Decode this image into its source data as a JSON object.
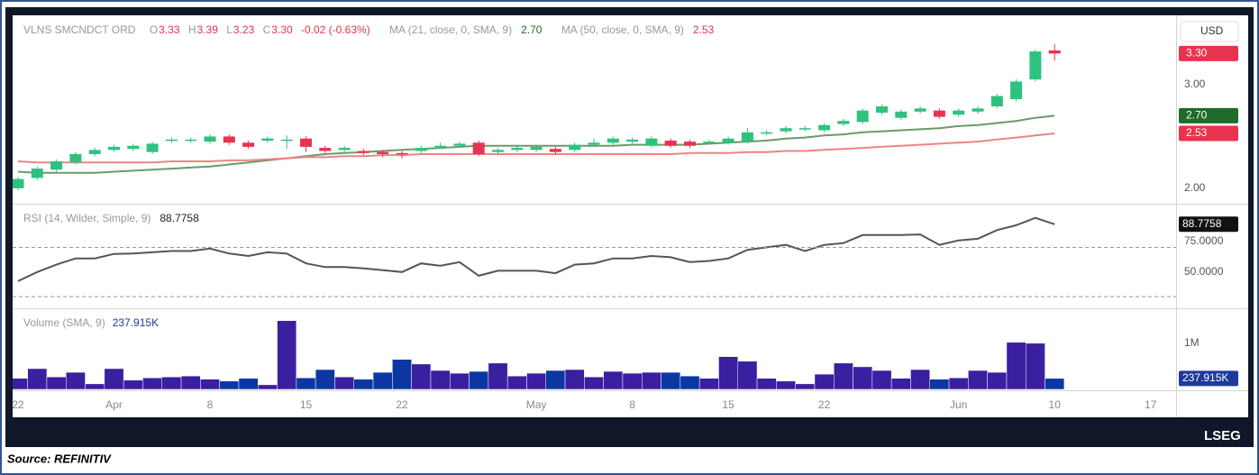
{
  "chart_data": [
    {
      "type": "candlestick",
      "title": "VLNS SMCNDCT ORD",
      "currency": "USD",
      "ohlc_letters": [
        "O",
        "H",
        "L",
        "C"
      ],
      "change_label": "-0.02 (-0.63%)",
      "up_color": "#2ec27e",
      "down_color": "#e8334f",
      "open": [
        2.0,
        2.1,
        2.18,
        2.25,
        2.33,
        2.37,
        2.38,
        2.35,
        2.46,
        2.46,
        2.45,
        2.5,
        2.44,
        2.46,
        2.47,
        2.48,
        2.39,
        2.37,
        2.36,
        2.35,
        2.34,
        2.36,
        2.4,
        2.41,
        2.44,
        2.35,
        2.37,
        2.37,
        2.38,
        2.37,
        2.42,
        2.44,
        2.45,
        2.41,
        2.46,
        2.45,
        2.44,
        2.44,
        2.45,
        2.53,
        2.55,
        2.57,
        2.56,
        2.62,
        2.64,
        2.73,
        2.68,
        2.74,
        2.75,
        2.71,
        2.74,
        2.79,
        2.86,
        3.05,
        3.33,
        null,
        null,
        null,
        null,
        null,
        null
      ],
      "high": [
        2.11,
        2.21,
        2.28,
        2.35,
        2.39,
        2.42,
        2.43,
        2.45,
        2.49,
        2.49,
        2.52,
        2.52,
        2.46,
        2.5,
        2.51,
        2.5,
        2.41,
        2.41,
        2.38,
        2.37,
        2.36,
        2.41,
        2.44,
        2.45,
        2.46,
        2.39,
        2.41,
        2.42,
        2.4,
        2.44,
        2.48,
        2.5,
        2.49,
        2.5,
        2.48,
        2.47,
        2.47,
        2.5,
        2.58,
        2.56,
        2.6,
        2.6,
        2.63,
        2.67,
        2.77,
        2.81,
        2.76,
        2.79,
        2.77,
        2.77,
        2.79,
        2.91,
        3.05,
        3.34,
        3.39,
        null,
        null,
        null,
        null,
        null,
        null
      ],
      "low": [
        1.98,
        2.08,
        2.16,
        2.23,
        2.31,
        2.35,
        2.36,
        2.33,
        2.44,
        2.44,
        2.43,
        2.42,
        2.38,
        2.44,
        2.38,
        2.35,
        2.34,
        2.35,
        2.32,
        2.3,
        2.29,
        2.34,
        2.38,
        2.39,
        2.31,
        2.33,
        2.35,
        2.35,
        2.33,
        2.35,
        2.4,
        2.42,
        2.43,
        2.39,
        2.39,
        2.39,
        2.42,
        2.42,
        2.43,
        2.51,
        2.53,
        2.55,
        2.54,
        2.6,
        2.62,
        2.71,
        2.66,
        2.72,
        2.67,
        2.69,
        2.72,
        2.77,
        2.84,
        3.03,
        3.23,
        null,
        null,
        null,
        null,
        null,
        null
      ],
      "close": [
        2.09,
        2.19,
        2.26,
        2.33,
        2.37,
        2.4,
        2.41,
        2.43,
        2.47,
        2.47,
        2.5,
        2.44,
        2.4,
        2.48,
        2.47,
        2.4,
        2.36,
        2.39,
        2.34,
        2.33,
        2.33,
        2.39,
        2.41,
        2.43,
        2.33,
        2.37,
        2.39,
        2.4,
        2.35,
        2.42,
        2.44,
        2.48,
        2.47,
        2.48,
        2.41,
        2.41,
        2.45,
        2.48,
        2.54,
        2.54,
        2.58,
        2.58,
        2.61,
        2.65,
        2.75,
        2.79,
        2.74,
        2.77,
        2.69,
        2.75,
        2.77,
        2.89,
        3.03,
        3.32,
        3.3,
        null,
        null,
        null,
        null,
        null,
        null
      ],
      "overlays": [
        {
          "name": "MA (21, close, 0, SMA, 9)",
          "color": "#6a9a6a",
          "values": [
            2.16,
            2.15,
            2.15,
            2.15,
            2.15,
            2.16,
            2.17,
            2.18,
            2.19,
            2.2,
            2.21,
            2.23,
            2.25,
            2.27,
            2.29,
            2.31,
            2.33,
            2.34,
            2.35,
            2.36,
            2.37,
            2.38,
            2.39,
            2.4,
            2.41,
            2.41,
            2.41,
            2.41,
            2.41,
            2.41,
            2.41,
            2.41,
            2.42,
            2.42,
            2.42,
            2.42,
            2.43,
            2.44,
            2.45,
            2.46,
            2.48,
            2.49,
            2.51,
            2.52,
            2.54,
            2.55,
            2.56,
            2.57,
            2.58,
            2.6,
            2.61,
            2.63,
            2.65,
            2.68,
            2.7,
            null,
            null,
            null,
            null,
            null,
            null
          ]
        },
        {
          "name": "MA (50, close, 0, SMA, 9)",
          "color": "#ec8585",
          "values": [
            2.26,
            2.25,
            2.25,
            2.25,
            2.25,
            2.25,
            2.25,
            2.25,
            2.26,
            2.26,
            2.26,
            2.27,
            2.27,
            2.28,
            2.29,
            2.3,
            2.3,
            2.31,
            2.31,
            2.32,
            2.32,
            2.33,
            2.33,
            2.33,
            2.33,
            2.33,
            2.33,
            2.33,
            2.33,
            2.33,
            2.33,
            2.33,
            2.33,
            2.33,
            2.33,
            2.34,
            2.34,
            2.34,
            2.35,
            2.35,
            2.36,
            2.36,
            2.37,
            2.38,
            2.39,
            2.4,
            2.41,
            2.42,
            2.43,
            2.44,
            2.45,
            2.47,
            2.49,
            2.51,
            2.53,
            null,
            null,
            null,
            null,
            null,
            null
          ]
        }
      ],
      "price_tags": [
        {
          "value": 3.3,
          "label": "3.30",
          "color": "#e8334f"
        },
        {
          "value": 2.7,
          "label": "2.70",
          "color": "#1f6b2a"
        },
        {
          "value": 2.53,
          "label": "2.53",
          "color": "#e8334f"
        }
      ],
      "ylim": [
        1.86,
        3.66
      ],
      "yticks": [
        {
          "value": 2,
          "label": "2.00"
        },
        {
          "value": 3,
          "label": "3.00"
        }
      ]
    },
    {
      "type": "line",
      "title": "RSI (14, Wilder, Simple, 9)",
      "color": "#555555",
      "values": [
        42.6,
        50,
        56,
        61,
        61,
        64.7,
        65,
        66,
        67,
        67,
        69,
        65,
        63,
        66,
        65,
        57,
        54,
        54,
        53,
        51.5,
        50,
        57,
        55,
        58,
        47,
        51,
        51,
        51,
        49,
        56,
        57,
        61,
        61,
        63,
        62,
        58,
        59,
        61,
        68,
        70,
        72,
        67,
        72,
        73.5,
        80,
        80,
        80,
        80.5,
        72,
        75.7,
        77,
        84,
        88,
        94,
        88.7758,
        null,
        null,
        null,
        null,
        null,
        null
      ],
      "ylim": [
        22,
        104
      ],
      "yticks": [
        {
          "value": 50,
          "label": "50.0000"
        },
        {
          "value": 75,
          "label": "75.0000"
        }
      ],
      "hlines": [
        30,
        70
      ]
    },
    {
      "type": "bar",
      "title": "Volume (SMA, 9)",
      "last_value_label": "237.915K",
      "up_color": "#3a1fa0",
      "down_color": "#0c37a3",
      "categories": [
        "22",
        null,
        null,
        null,
        null,
        "Apr",
        null,
        null,
        null,
        null,
        "8",
        null,
        null,
        null,
        null,
        "15",
        null,
        null,
        null,
        null,
        "22",
        null,
        null,
        null,
        null,
        null,
        null,
        "May",
        null,
        null,
        null,
        null,
        "8",
        null,
        null,
        null,
        null,
        "15",
        null,
        null,
        null,
        null,
        "22",
        null,
        null,
        null,
        null,
        null,
        null,
        "Jun",
        null,
        null,
        null,
        null,
        "10",
        null,
        null,
        null,
        null,
        "17",
        null
      ],
      "values": [
        240000,
        450000,
        270000,
        370000,
        120000,
        450000,
        200000,
        250000,
        270000,
        290000,
        220000,
        180000,
        240000,
        100000,
        1490000,
        250000,
        430000,
        270000,
        220000,
        370000,
        650000,
        550000,
        410000,
        350000,
        390000,
        570000,
        290000,
        350000,
        410000,
        430000,
        270000,
        390000,
        350000,
        370000,
        370000,
        290000,
        240000,
        710000,
        610000,
        240000,
        180000,
        120000,
        330000,
        570000,
        490000,
        410000,
        240000,
        430000,
        220000,
        250000,
        410000,
        370000,
        1020000,
        1000000,
        237915,
        null,
        null,
        null,
        null,
        null,
        null
      ],
      "ylim": [
        0,
        1720000
      ],
      "yticks": [
        {
          "value": 1000000,
          "label": "1M"
        }
      ]
    }
  ],
  "source": "Source: REFINITIV",
  "brand": "LSEG"
}
